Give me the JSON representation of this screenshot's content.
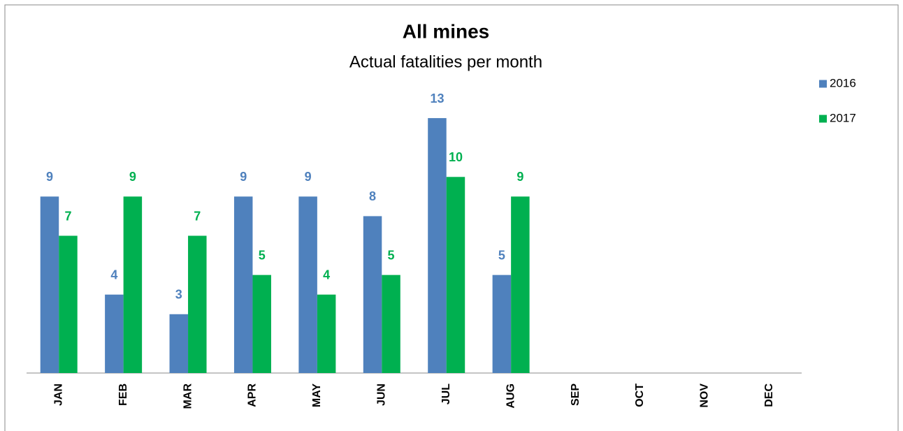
{
  "chart_data": {
    "type": "bar",
    "title": "All mines",
    "subtitle": "Actual fatalities per month",
    "categories": [
      "JAN",
      "FEB",
      "MAR",
      "APR",
      "MAY",
      "JUN",
      "JUL",
      "AUG",
      "SEP",
      "OCT",
      "NOV",
      "DEC"
    ],
    "series": [
      {
        "name": "2016",
        "color": "#4f81bd",
        "values": [
          9,
          4,
          3,
          9,
          9,
          8,
          13,
          5,
          null,
          null,
          null,
          null
        ]
      },
      {
        "name": "2017",
        "color": "#00b050",
        "values": [
          7,
          9,
          7,
          5,
          4,
          5,
          10,
          9,
          null,
          null,
          null,
          null
        ]
      }
    ],
    "ylim": [
      0,
      14
    ],
    "grid": false,
    "legend": "right"
  }
}
